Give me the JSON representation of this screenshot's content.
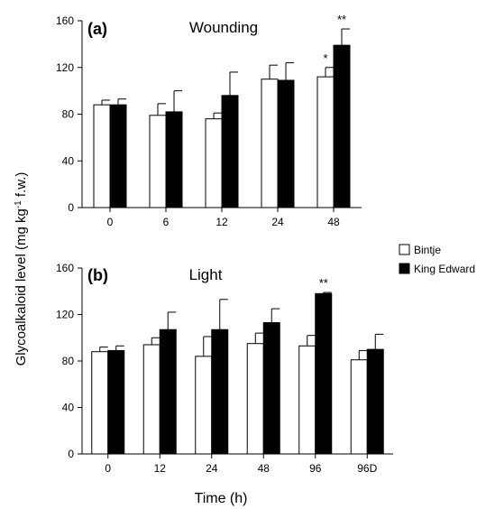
{
  "chart_data": {
    "ylabel": "Glycoalkaloid level (mg kg-1 f.w.)",
    "ylabel_parts": {
      "pre": "Glycoalkaloid level (mg kg",
      "sup": "-1",
      "post": " f.w.)"
    },
    "xlabel": "Time (h)",
    "legend": {
      "position": "right-middle",
      "entries": [
        {
          "name": "Bintje",
          "color": "#ffffff"
        },
        {
          "name": "King Edward",
          "color": "#000000"
        }
      ]
    },
    "panels": [
      {
        "type": "bar",
        "label": "(a)",
        "title": "Wounding",
        "categories": [
          "0",
          "6",
          "12",
          "24",
          "48"
        ],
        "ylim": [
          0,
          160
        ],
        "yticks": [
          "0",
          "40",
          "80",
          "120",
          "160"
        ],
        "series": [
          {
            "name": "Bintje",
            "values": [
              88,
              79,
              76,
              110,
              112
            ],
            "errors": [
              4,
              10,
              5,
              12,
              8
            ],
            "color": "#ffffff"
          },
          {
            "name": "King Edward",
            "values": [
              88,
              82,
              96,
              109,
              139
            ],
            "errors": [
              5,
              18,
              20,
              15,
              14
            ],
            "color": "#000000"
          }
        ],
        "annotations": [
          {
            "category": "48",
            "series": "Bintje",
            "text": "*"
          },
          {
            "category": "48",
            "series": "King Edward",
            "text": "**"
          }
        ]
      },
      {
        "type": "bar",
        "label": "(b)",
        "title": "Light",
        "categories": [
          "0",
          "12",
          "24",
          "48",
          "96",
          "96D"
        ],
        "ylim": [
          0,
          160
        ],
        "yticks": [
          "0",
          "40",
          "80",
          "120",
          "160"
        ],
        "series": [
          {
            "name": "Bintje",
            "values": [
              88,
              94,
              84,
              95,
              93,
              81
            ],
            "errors": [
              4,
              6,
              17,
              9,
              9,
              8
            ],
            "color": "#ffffff"
          },
          {
            "name": "King Edward",
            "values": [
              89,
              107,
              107,
              113,
              138,
              90
            ],
            "errors": [
              4,
              15,
              26,
              12,
              1,
              13
            ],
            "color": "#000000"
          }
        ],
        "annotations": [
          {
            "category": "96",
            "series": "King Edward",
            "text": "**"
          }
        ]
      }
    ]
  }
}
